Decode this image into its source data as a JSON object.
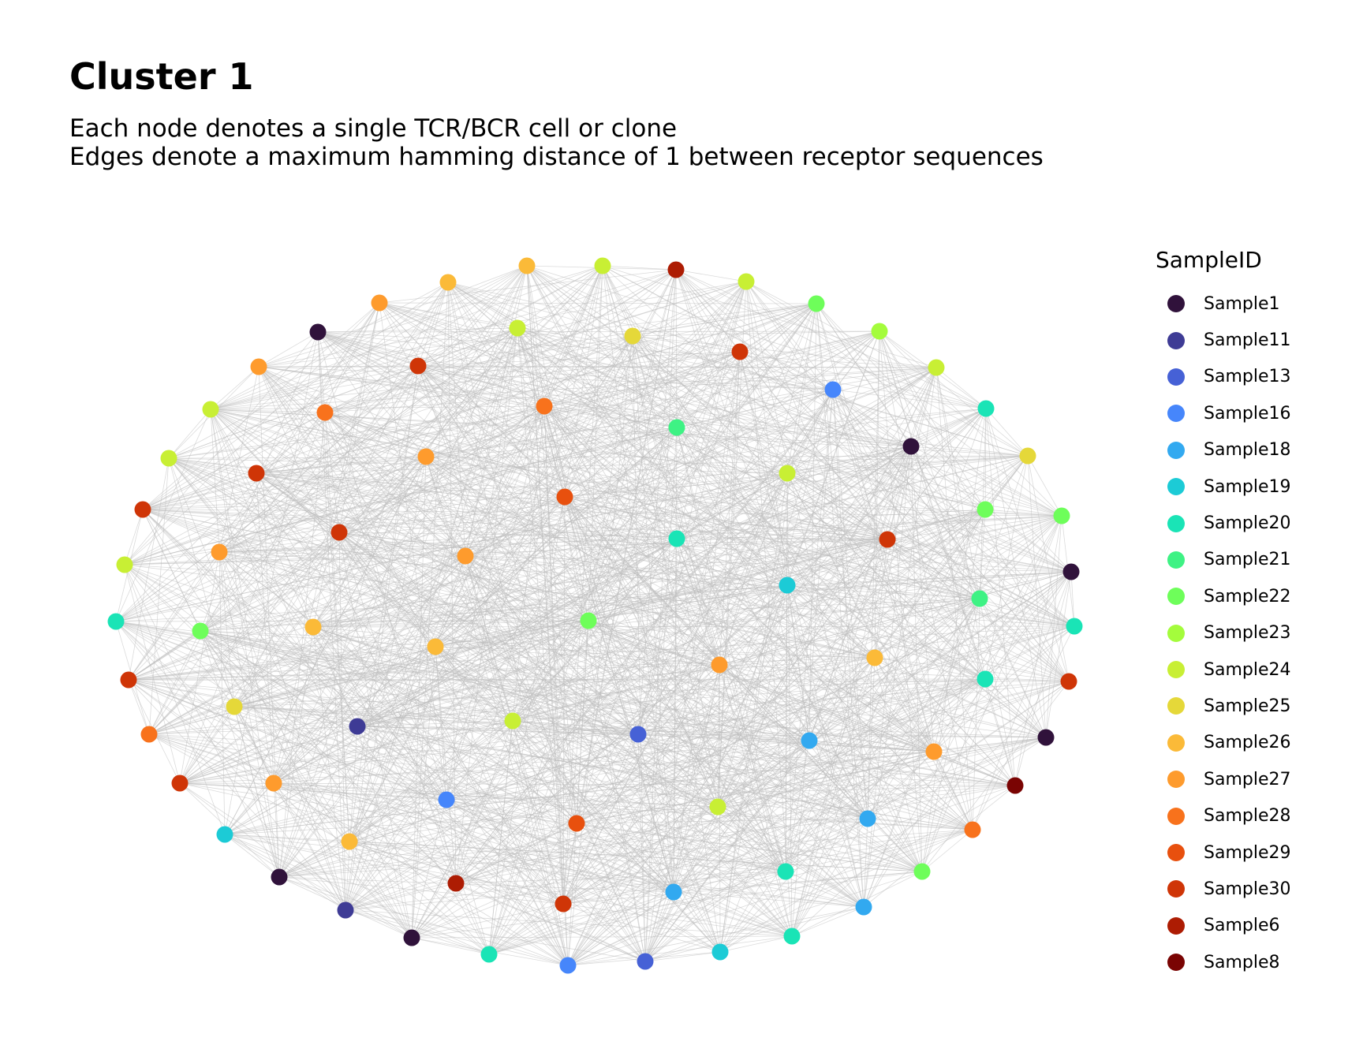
{
  "title": "Cluster 1",
  "subtitle_lines": [
    "Each node denotes a single TCR/BCR cell or clone",
    "Edges denote a maximum hamming distance of 1 between receptor sequences"
  ],
  "legend": {
    "title": "SampleID",
    "items": [
      {
        "label": "Sample1",
        "color": "#30123b"
      },
      {
        "label": "Sample11",
        "color": "#3e3b95"
      },
      {
        "label": "Sample13",
        "color": "#4661d6"
      },
      {
        "label": "Sample16",
        "color": "#4686fb"
      },
      {
        "label": "Sample18",
        "color": "#32a9f0"
      },
      {
        "label": "Sample19",
        "color": "#1ccbd6"
      },
      {
        "label": "Sample20",
        "color": "#1ae4b6"
      },
      {
        "label": "Sample21",
        "color": "#3ef284"
      },
      {
        "label": "Sample22",
        "color": "#6efe5a"
      },
      {
        "label": "Sample23",
        "color": "#a4fc3c"
      },
      {
        "label": "Sample24",
        "color": "#c8ef34"
      },
      {
        "label": "Sample25",
        "color": "#e5d839"
      },
      {
        "label": "Sample26",
        "color": "#fbba38"
      },
      {
        "label": "Sample27",
        "color": "#fe9b2d"
      },
      {
        "label": "Sample28",
        "color": "#f8721c"
      },
      {
        "label": "Sample29",
        "color": "#e8500e"
      },
      {
        "label": "Sample30",
        "color": "#cf3507"
      },
      {
        "label": "Sample6",
        "color": "#ad1c03"
      },
      {
        "label": "Sample8",
        "color": "#7a0403"
      }
    ]
  },
  "edge_color": "#bebebe"
}
